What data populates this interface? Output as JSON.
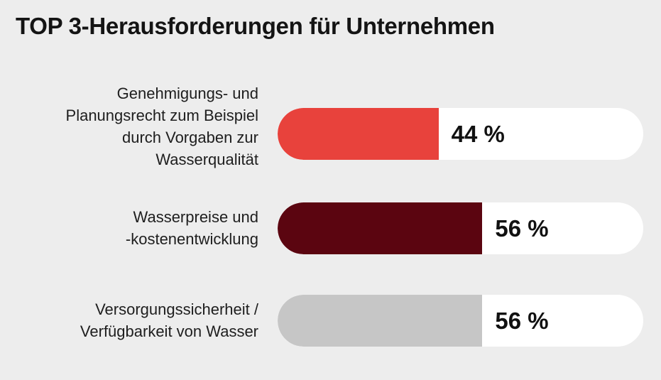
{
  "chart_data": {
    "type": "bar",
    "orientation": "horizontal",
    "title": "TOP 3-Herausforderungen für Unternehmen",
    "xlim": [
      0,
      100
    ],
    "grid": false,
    "categories": [
      "Genehmigungs- und Planungsrecht zum Beispiel durch Vorgaben zur Wasserqualität",
      "Wasserpreise und -kostenentwicklung",
      "Versorgungssicherheit / Verfügbarkeit von Wasser"
    ],
    "values": [
      44,
      56,
      56
    ],
    "unit": "%"
  },
  "rows": [
    {
      "label_lines": [
        "Genehmigungs- und",
        "Planungsrecht zum Beispiel",
        "durch Vorgaben zur",
        "Wasserqualität"
      ],
      "value_text": "44 %",
      "color": "#e8423c"
    },
    {
      "label_lines": [
        "Wasserpreise und",
        "-kostenentwicklung"
      ],
      "value_text": "56 %",
      "color": "#5b0510"
    },
    {
      "label_lines": [
        "Versorgungssicherheit /",
        "Verfügbarkeit von Wasser"
      ],
      "value_text": "56 %",
      "color": "#c6c6c6"
    }
  ],
  "colors": {
    "background": "#ededed",
    "track": "#ffffff"
  }
}
